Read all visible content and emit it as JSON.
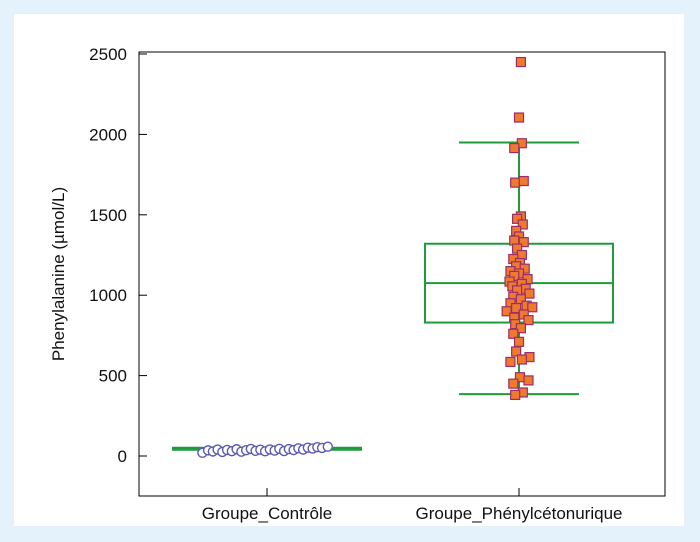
{
  "chart_data": {
    "type": "box-scatter",
    "ylabel": "Phenylalanine (µmol/L)",
    "ylim": [
      0,
      2500
    ],
    "yticks": [
      0,
      500,
      1000,
      1500,
      2000,
      2500
    ],
    "categories": [
      "Groupe_Contrôle",
      "Groupe_Phénylcétonurique"
    ],
    "colors": {
      "box": "#1f9a3c",
      "control_point_fill": "#ffffff",
      "control_point_stroke": "#5a58b5",
      "pku_point_fill": "#f07a2c",
      "pku_point_stroke": "#9a2e6a",
      "background": "#e4f3fb"
    },
    "series": [
      {
        "category": "Groupe_Contrôle",
        "marker": "circle",
        "box": {
          "whisker_low": 45,
          "q1": 45,
          "median": 45,
          "q3": 45,
          "whisker_high": 45
        },
        "points": [
          {
            "dx": -0.68,
            "y": 20
          },
          {
            "dx": -0.62,
            "y": 35
          },
          {
            "dx": -0.57,
            "y": 28
          },
          {
            "dx": -0.52,
            "y": 40
          },
          {
            "dx": -0.47,
            "y": 25
          },
          {
            "dx": -0.42,
            "y": 38
          },
          {
            "dx": -0.37,
            "y": 30
          },
          {
            "dx": -0.32,
            "y": 42
          },
          {
            "dx": -0.27,
            "y": 27
          },
          {
            "dx": -0.22,
            "y": 36
          },
          {
            "dx": -0.17,
            "y": 44
          },
          {
            "dx": -0.12,
            "y": 32
          },
          {
            "dx": -0.07,
            "y": 39
          },
          {
            "dx": -0.02,
            "y": 29
          },
          {
            "dx": 0.03,
            "y": 41
          },
          {
            "dx": 0.08,
            "y": 34
          },
          {
            "dx": 0.13,
            "y": 45
          },
          {
            "dx": 0.18,
            "y": 31
          },
          {
            "dx": 0.23,
            "y": 43
          },
          {
            "dx": 0.28,
            "y": 37
          },
          {
            "dx": 0.33,
            "y": 48
          },
          {
            "dx": 0.38,
            "y": 40
          },
          {
            "dx": 0.43,
            "y": 52
          },
          {
            "dx": 0.48,
            "y": 46
          },
          {
            "dx": 0.53,
            "y": 55
          },
          {
            "dx": 0.58,
            "y": 50
          },
          {
            "dx": 0.64,
            "y": 58
          }
        ]
      },
      {
        "category": "Groupe_Phénylcétonurique",
        "marker": "square",
        "box": {
          "whisker_low": 385,
          "q1": 830,
          "median": 1075,
          "q3": 1320,
          "whisker_high": 1950
        },
        "points": [
          {
            "dx": 0.02,
            "y": 2450
          },
          {
            "dx": 0.0,
            "y": 2105
          },
          {
            "dx": 0.03,
            "y": 1945
          },
          {
            "dx": -0.05,
            "y": 1915
          },
          {
            "dx": -0.04,
            "y": 1700
          },
          {
            "dx": 0.05,
            "y": 1710
          },
          {
            "dx": 0.02,
            "y": 1490
          },
          {
            "dx": -0.02,
            "y": 1475
          },
          {
            "dx": 0.04,
            "y": 1440
          },
          {
            "dx": -0.03,
            "y": 1400
          },
          {
            "dx": 0.0,
            "y": 1365
          },
          {
            "dx": -0.05,
            "y": 1340
          },
          {
            "dx": 0.05,
            "y": 1330
          },
          {
            "dx": -0.02,
            "y": 1290
          },
          {
            "dx": 0.03,
            "y": 1250
          },
          {
            "dx": -0.06,
            "y": 1225
          },
          {
            "dx": 0.01,
            "y": 1200
          },
          {
            "dx": -0.03,
            "y": 1180
          },
          {
            "dx": 0.06,
            "y": 1165
          },
          {
            "dx": -0.09,
            "y": 1150
          },
          {
            "dx": 0.0,
            "y": 1135
          },
          {
            "dx": -0.05,
            "y": 1120
          },
          {
            "dx": 0.09,
            "y": 1100
          },
          {
            "dx": -0.1,
            "y": 1085
          },
          {
            "dx": 0.03,
            "y": 1070
          },
          {
            "dx": -0.07,
            "y": 1055
          },
          {
            "dx": 0.07,
            "y": 1040
          },
          {
            "dx": -0.02,
            "y": 1030
          },
          {
            "dx": 0.11,
            "y": 1010
          },
          {
            "dx": -0.06,
            "y": 990
          },
          {
            "dx": 0.02,
            "y": 975
          },
          {
            "dx": -0.09,
            "y": 950
          },
          {
            "dx": 0.08,
            "y": 935
          },
          {
            "dx": -0.03,
            "y": 920
          },
          {
            "dx": 0.14,
            "y": 925
          },
          {
            "dx": -0.13,
            "y": 900
          },
          {
            "dx": 0.05,
            "y": 880
          },
          {
            "dx": -0.05,
            "y": 860
          },
          {
            "dx": 0.1,
            "y": 845
          },
          {
            "dx": -0.04,
            "y": 820
          },
          {
            "dx": 0.02,
            "y": 795
          },
          {
            "dx": -0.06,
            "y": 760
          },
          {
            "dx": 0.0,
            "y": 710
          },
          {
            "dx": -0.03,
            "y": 650
          },
          {
            "dx": 0.11,
            "y": 615
          },
          {
            "dx": 0.03,
            "y": 600
          },
          {
            "dx": -0.09,
            "y": 585
          },
          {
            "dx": 0.01,
            "y": 490
          },
          {
            "dx": 0.1,
            "y": 470
          },
          {
            "dx": -0.06,
            "y": 450
          },
          {
            "dx": 0.04,
            "y": 395
          },
          {
            "dx": -0.04,
            "y": 380
          }
        ]
      }
    ]
  }
}
